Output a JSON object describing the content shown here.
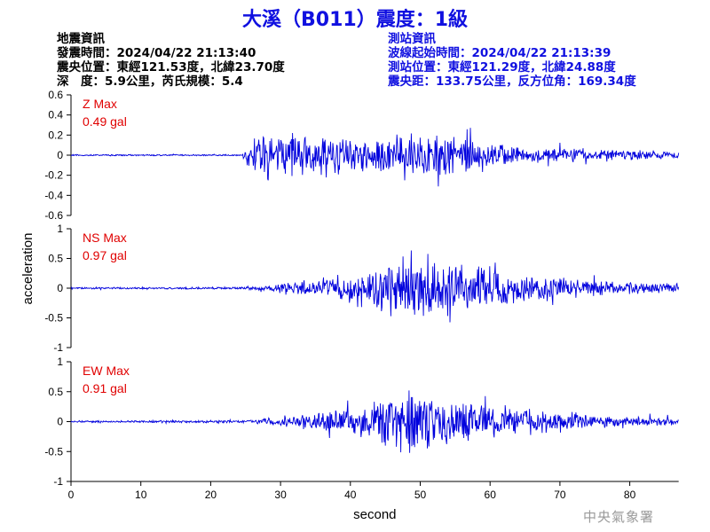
{
  "title": "大溪（B011）震度：1級",
  "earthquake_info": {
    "heading": "地震資訊",
    "origin_time": "發震時間：2024/04/22 21:13:40",
    "epicenter": "震央位置：東經121.53度，北緯23.70度",
    "depth_magnitude": "深　度：5.9公里，芮氏規模：5.4"
  },
  "station_info": {
    "heading": "測站資訊",
    "wave_start": "波線起始時間：2024/04/22 21:13:39",
    "location": "測站位置：東經121.29度，北緯24.88度",
    "distance": "震央距：133.75公里，反方位角：169.34度"
  },
  "credit": "中央氣象署",
  "colors": {
    "title": "#1010e0",
    "trace": "#0000dd",
    "max_label": "#e00000"
  },
  "chart_data": [
    {
      "type": "line",
      "component": "Z",
      "max_label": "Z Max",
      "max_value": "0.49 gal",
      "ylim": [
        -0.6,
        0.6
      ],
      "yticks": [
        "0.6",
        "0.4",
        "0.2",
        "0",
        "-0.2",
        "-0.4",
        "-0.6"
      ],
      "envelope": [
        [
          0,
          0.01
        ],
        [
          24.5,
          0.01
        ],
        [
          25.5,
          0.2
        ],
        [
          30,
          0.28
        ],
        [
          40,
          0.25
        ],
        [
          45,
          0.25
        ],
        [
          48,
          0.32
        ],
        [
          50,
          0.3
        ],
        [
          53,
          0.34
        ],
        [
          55,
          0.3
        ],
        [
          60,
          0.18
        ],
        [
          65,
          0.12
        ],
        [
          70,
          0.1
        ],
        [
          80,
          0.07
        ],
        [
          87,
          0.05
        ]
      ]
    },
    {
      "type": "line",
      "component": "NS",
      "max_label": "NS Max",
      "max_value": "0.97 gal",
      "ylim": [
        -1,
        1
      ],
      "yticks": [
        "1",
        "0.5",
        "0",
        "-0.5",
        "-1"
      ],
      "envelope": [
        [
          0,
          0.02
        ],
        [
          25,
          0.03
        ],
        [
          30,
          0.1
        ],
        [
          40,
          0.35
        ],
        [
          45,
          0.6
        ],
        [
          48,
          0.85
        ],
        [
          50,
          0.8
        ],
        [
          53,
          0.6
        ],
        [
          58,
          0.55
        ],
        [
          65,
          0.35
        ],
        [
          70,
          0.25
        ],
        [
          80,
          0.15
        ],
        [
          87,
          0.12
        ]
      ]
    },
    {
      "type": "line",
      "component": "EW",
      "max_label": "EW Max",
      "max_value": "0.91 gal",
      "ylim": [
        -1,
        1
      ],
      "yticks": [
        "1",
        "0.5",
        "0",
        "-0.5",
        "-1"
      ],
      "envelope": [
        [
          0,
          0.02
        ],
        [
          25,
          0.03
        ],
        [
          30,
          0.1
        ],
        [
          40,
          0.3
        ],
        [
          45,
          0.55
        ],
        [
          48,
          0.85
        ],
        [
          50,
          0.7
        ],
        [
          53,
          0.55
        ],
        [
          58,
          0.45
        ],
        [
          65,
          0.3
        ],
        [
          70,
          0.22
        ],
        [
          80,
          0.12
        ],
        [
          87,
          0.08
        ]
      ]
    }
  ],
  "x_axis": {
    "label": "second",
    "range": [
      0,
      87
    ],
    "ticks": [
      "0",
      "10",
      "20",
      "30",
      "40",
      "50",
      "60",
      "70",
      "80"
    ]
  },
  "y_axis_label": "acceleration"
}
